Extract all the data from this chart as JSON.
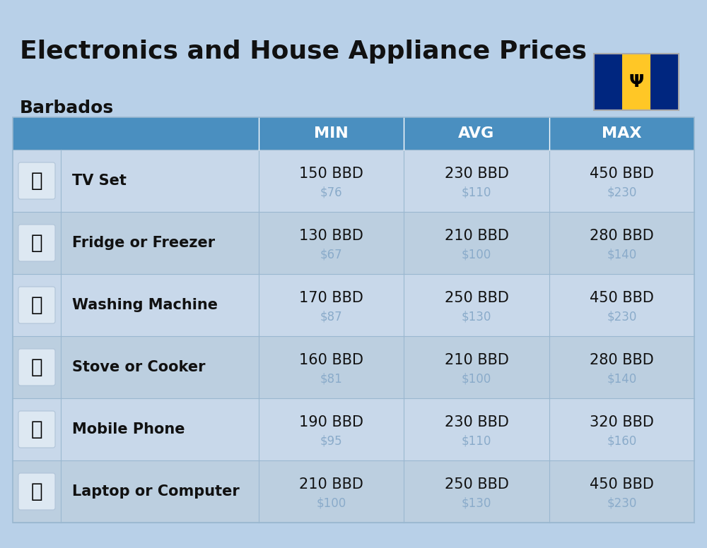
{
  "title": "Electronics and House Appliance Prices",
  "subtitle": "Barbados",
  "background_color": "#b8d0e8",
  "header_color": "#4a8fc0",
  "header_text_color": "#ffffff",
  "divider_color": "#9ab8d0",
  "item_name_color": "#111111",
  "price_bbd_color": "#111111",
  "price_usd_color": "#8aabca",
  "col_headers": [
    "MIN",
    "AVG",
    "MAX"
  ],
  "rows": [
    {
      "name": "TV Set",
      "min_bbd": "150 BBD",
      "min_usd": "$76",
      "avg_bbd": "230 BBD",
      "avg_usd": "$110",
      "max_bbd": "450 BBD",
      "max_usd": "$230"
    },
    {
      "name": "Fridge or Freezer",
      "min_bbd": "130 BBD",
      "min_usd": "$67",
      "avg_bbd": "210 BBD",
      "avg_usd": "$100",
      "max_bbd": "280 BBD",
      "max_usd": "$140"
    },
    {
      "name": "Washing Machine",
      "min_bbd": "170 BBD",
      "min_usd": "$87",
      "avg_bbd": "250 BBD",
      "avg_usd": "$130",
      "max_bbd": "450 BBD",
      "max_usd": "$230"
    },
    {
      "name": "Stove or Cooker",
      "min_bbd": "160 BBD",
      "min_usd": "$81",
      "avg_bbd": "210 BBD",
      "avg_usd": "$100",
      "max_bbd": "280 BBD",
      "max_usd": "$140"
    },
    {
      "name": "Mobile Phone",
      "min_bbd": "190 BBD",
      "min_usd": "$95",
      "avg_bbd": "230 BBD",
      "avg_usd": "$110",
      "max_bbd": "320 BBD",
      "max_usd": "$160"
    },
    {
      "name": "Laptop or Computer",
      "min_bbd": "210 BBD",
      "min_usd": "$100",
      "avg_bbd": "250 BBD",
      "avg_usd": "$130",
      "max_bbd": "450 BBD",
      "max_usd": "$230"
    }
  ],
  "title_fontsize": 26,
  "subtitle_fontsize": 18,
  "header_fontsize": 16,
  "item_name_fontsize": 15,
  "price_bbd_fontsize": 15,
  "price_usd_fontsize": 12,
  "flag_blue": "#00267F",
  "flag_yellow": "#FFC726",
  "flag_trident_color": "#000000"
}
